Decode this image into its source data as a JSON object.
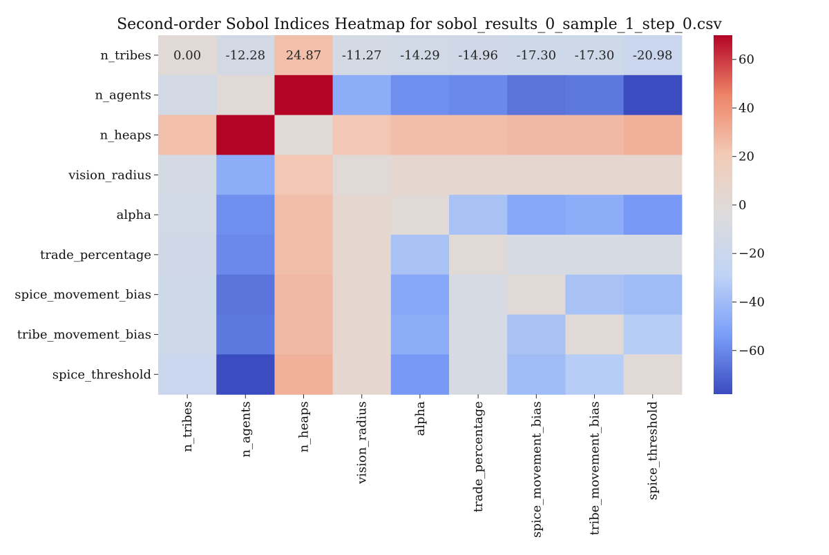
{
  "chart_data": {
    "type": "heatmap",
    "title": "Second-order Sobol Indices Heatmap for sobol_results_0_sample_1_step_0.csv",
    "xlabel": "",
    "ylabel": "",
    "rows": [
      "n_tribes",
      "n_agents",
      "n_heaps",
      "vision_radius",
      "alpha",
      "trade_percentage",
      "spice_movement_bias",
      "tribe_movement_bias",
      "spice_threshold"
    ],
    "columns": [
      "n_tribes",
      "n_agents",
      "n_heaps",
      "vision_radius",
      "alpha",
      "trade_percentage",
      "spice_movement_bias",
      "tribe_movement_bias",
      "spice_threshold"
    ],
    "values": [
      [
        0.0,
        -12.28,
        24.87,
        -11.27,
        -14.29,
        -14.96,
        -17.3,
        -17.3,
        -20.98
      ],
      [
        -12.28,
        0.0,
        70.0,
        -47.0,
        -58.0,
        -60.0,
        -66.0,
        -65.0,
        -78.0
      ],
      [
        24.87,
        70.0,
        0.0,
        22.0,
        25.0,
        25.0,
        27.0,
        27.0,
        30.0
      ],
      [
        -11.27,
        -47.0,
        22.0,
        0.0,
        5.0,
        5.0,
        5.0,
        5.0,
        5.0
      ],
      [
        -14.29,
        -58.0,
        25.0,
        5.0,
        0.0,
        -37.0,
        -49.0,
        -47.0,
        -55.0
      ],
      [
        -14.96,
        -60.0,
        25.0,
        5.0,
        -37.0,
        0.0,
        -10.0,
        -10.0,
        -10.0
      ],
      [
        -17.3,
        -66.0,
        27.0,
        5.0,
        -49.0,
        -10.0,
        0.0,
        -37.0,
        -40.0
      ],
      [
        -17.3,
        -65.0,
        27.0,
        5.0,
        -47.0,
        -10.0,
        -37.0,
        0.0,
        -32.0
      ],
      [
        -20.98,
        -78.0,
        30.0,
        5.0,
        -55.0,
        -10.0,
        -40.0,
        -32.0,
        0.0
      ]
    ],
    "cell_labels": [
      [
        "0.00",
        "-12.28",
        "24.87",
        "-11.27",
        "-14.29",
        "-14.96",
        "-17.30",
        "-17.30",
        "-20.98"
      ],
      [
        "",
        "",
        "",
        "",
        "",
        "",
        "",
        "",
        ""
      ],
      [
        "",
        "",
        "",
        "",
        "",
        "",
        "",
        "",
        ""
      ],
      [
        "",
        "",
        "",
        "",
        "",
        "",
        "",
        "",
        ""
      ],
      [
        "",
        "",
        "",
        "",
        "",
        "",
        "",
        "",
        ""
      ],
      [
        "",
        "",
        "",
        "",
        "",
        "",
        "",
        "",
        ""
      ],
      [
        "",
        "",
        "",
        "",
        "",
        "",
        "",
        "",
        ""
      ],
      [
        "",
        "",
        "",
        "",
        "",
        "",
        "",
        "",
        ""
      ],
      [
        "",
        "",
        "",
        "",
        "",
        "",
        "",
        "",
        ""
      ]
    ],
    "colormap": "coolwarm",
    "colormap_stops": [
      "#3b4cc0",
      "#7b9ff9",
      "#c0d4f5",
      "#dddcdc",
      "#f2cbb7",
      "#ee8468",
      "#b40426"
    ],
    "vmin": -78,
    "vmax": 70,
    "colorbar": {
      "ticks": [
        60,
        40,
        20,
        0,
        -20,
        -40,
        -60
      ],
      "tick_labels": [
        "60",
        "40",
        "20",
        "0",
        "−20",
        "−40",
        "−60"
      ]
    },
    "grid": false,
    "legend": "colorbar-right"
  }
}
